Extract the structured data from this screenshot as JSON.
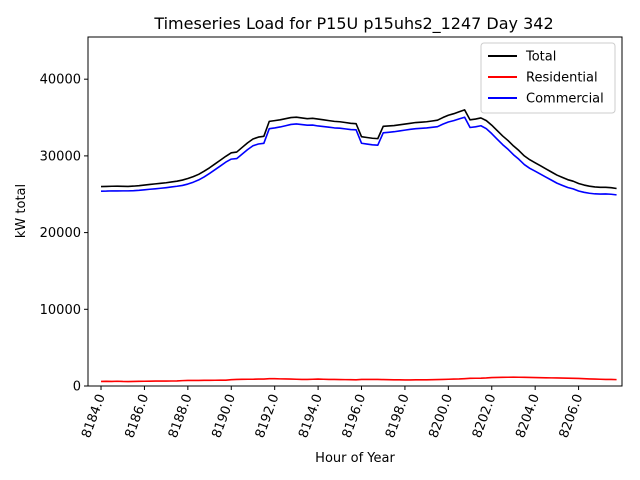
{
  "chart_data": {
    "type": "line",
    "title": "Timeseries Load for P15U p15uhs2_1247  Day 342",
    "xlabel": "Hour of Year",
    "ylabel": "kW total",
    "xlim": [
      8183.4,
      8208.0
    ],
    "ylim": [
      0,
      45500
    ],
    "xticks": [
      8184,
      8186,
      8188,
      8190,
      8192,
      8194,
      8196,
      8198,
      8200,
      8202,
      8204,
      8206
    ],
    "xtick_labels": [
      "8184.0",
      "8186.0",
      "8188.0",
      "8190.0",
      "8192.0",
      "8194.0",
      "8196.0",
      "8198.0",
      "8200.0",
      "8202.0",
      "8204.0",
      "8206.0"
    ],
    "yticks": [
      0,
      10000,
      20000,
      30000,
      40000
    ],
    "ytick_labels": [
      "0",
      "10000",
      "20000",
      "30000",
      "40000"
    ],
    "grid": false,
    "legend_position": "top-right",
    "x": [
      8184.0,
      8184.25,
      8184.5,
      8184.75,
      8185.0,
      8185.25,
      8185.5,
      8185.75,
      8186.0,
      8186.25,
      8186.5,
      8186.75,
      8187.0,
      8187.25,
      8187.5,
      8187.75,
      8188.0,
      8188.25,
      8188.5,
      8188.75,
      8189.0,
      8189.25,
      8189.5,
      8189.75,
      8190.0,
      8190.25,
      8190.5,
      8190.75,
      8191.0,
      8191.25,
      8191.5,
      8191.75,
      8192.0,
      8192.25,
      8192.5,
      8192.75,
      8193.0,
      8193.25,
      8193.5,
      8193.75,
      8194.0,
      8194.25,
      8194.5,
      8194.75,
      8195.0,
      8195.25,
      8195.5,
      8195.75,
      8196.0,
      8196.25,
      8196.5,
      8196.75,
      8197.0,
      8197.25,
      8197.5,
      8197.75,
      8198.0,
      8198.25,
      8198.5,
      8198.75,
      8199.0,
      8199.25,
      8199.5,
      8199.75,
      8200.0,
      8200.25,
      8200.5,
      8200.75,
      8201.0,
      8201.25,
      8201.5,
      8201.75,
      8202.0,
      8202.25,
      8202.5,
      8202.75,
      8203.0,
      8203.25,
      8203.5,
      8203.75,
      8204.0,
      8204.25,
      8204.5,
      8204.75,
      8205.0,
      8205.25,
      8205.5,
      8205.75,
      8206.0,
      8206.25,
      8206.5,
      8206.75,
      8207.0,
      8207.25,
      8207.5,
      8207.75
    ],
    "series": [
      {
        "name": "Total",
        "color": "#000000",
        "values": [
          26000,
          26020,
          26040,
          26050,
          26030,
          26020,
          26060,
          26120,
          26200,
          26280,
          26350,
          26420,
          26500,
          26600,
          26700,
          26850,
          27050,
          27300,
          27600,
          28000,
          28450,
          28950,
          29450,
          29950,
          30400,
          30500,
          31100,
          31700,
          32200,
          32450,
          32550,
          34500,
          34600,
          34700,
          34850,
          35000,
          35050,
          34950,
          34850,
          34900,
          34800,
          34700,
          34600,
          34500,
          34450,
          34350,
          34250,
          34200,
          32500,
          32400,
          32300,
          32250,
          33850,
          33900,
          33950,
          34050,
          34150,
          34250,
          34350,
          34400,
          34450,
          34550,
          34650,
          35000,
          35300,
          35500,
          35750,
          36000,
          34700,
          34800,
          34950,
          34600,
          34000,
          33300,
          32600,
          32000,
          31300,
          30700,
          30000,
          29500,
          29100,
          28700,
          28300,
          27900,
          27500,
          27200,
          26900,
          26700,
          26400,
          26200,
          26050,
          25950,
          25900,
          25900,
          25850,
          25750
        ]
      },
      {
        "name": "Residential",
        "color": "#ff0000",
        "values": [
          600,
          610,
          600,
          620,
          590,
          580,
          600,
          610,
          620,
          630,
          640,
          640,
          640,
          650,
          660,
          700,
          720,
          730,
          730,
          740,
          740,
          750,
          760,
          760,
          820,
          850,
          870,
          880,
          880,
          900,
          910,
          950,
          960,
          930,
          920,
          900,
          880,
          860,
          850,
          880,
          900,
          880,
          860,
          850,
          840,
          830,
          820,
          800,
          850,
          860,
          860,
          850,
          840,
          820,
          800,
          800,
          790,
          790,
          800,
          800,
          810,
          820,
          840,
          860,
          880,
          900,
          920,
          960,
          1000,
          1010,
          1020,
          1050,
          1100,
          1120,
          1130,
          1140,
          1150,
          1140,
          1130,
          1120,
          1100,
          1080,
          1070,
          1060,
          1050,
          1040,
          1020,
          1000,
          980,
          950,
          920,
          900,
          880,
          860,
          850,
          830
        ]
      },
      {
        "name": "Commercial",
        "color": "#0000ff",
        "values": [
          25400,
          25410,
          25440,
          25430,
          25440,
          25440,
          25460,
          25510,
          25580,
          25650,
          25710,
          25780,
          25860,
          25950,
          26040,
          26150,
          26330,
          26570,
          26870,
          27260,
          27710,
          28200,
          28690,
          29190,
          29580,
          29650,
          30230,
          30820,
          31320,
          31550,
          31640,
          33550,
          33640,
          33770,
          33930,
          34100,
          34170,
          34090,
          34000,
          34020,
          33900,
          33820,
          33740,
          33650,
          33610,
          33520,
          33430,
          33400,
          31650,
          31540,
          31440,
          31400,
          33010,
          33080,
          33150,
          33250,
          33360,
          33460,
          33550,
          33600,
          33640,
          33730,
          33810,
          34140,
          34420,
          34600,
          34830,
          35040,
          33700,
          33790,
          33930,
          33550,
          32900,
          32180,
          31470,
          30860,
          30150,
          29560,
          28870,
          28380,
          28000,
          27620,
          27230,
          26840,
          26450,
          26160,
          25880,
          25700,
          25420,
          25250,
          25130,
          25050,
          25020,
          25040,
          25000,
          24920
        ]
      }
    ]
  }
}
